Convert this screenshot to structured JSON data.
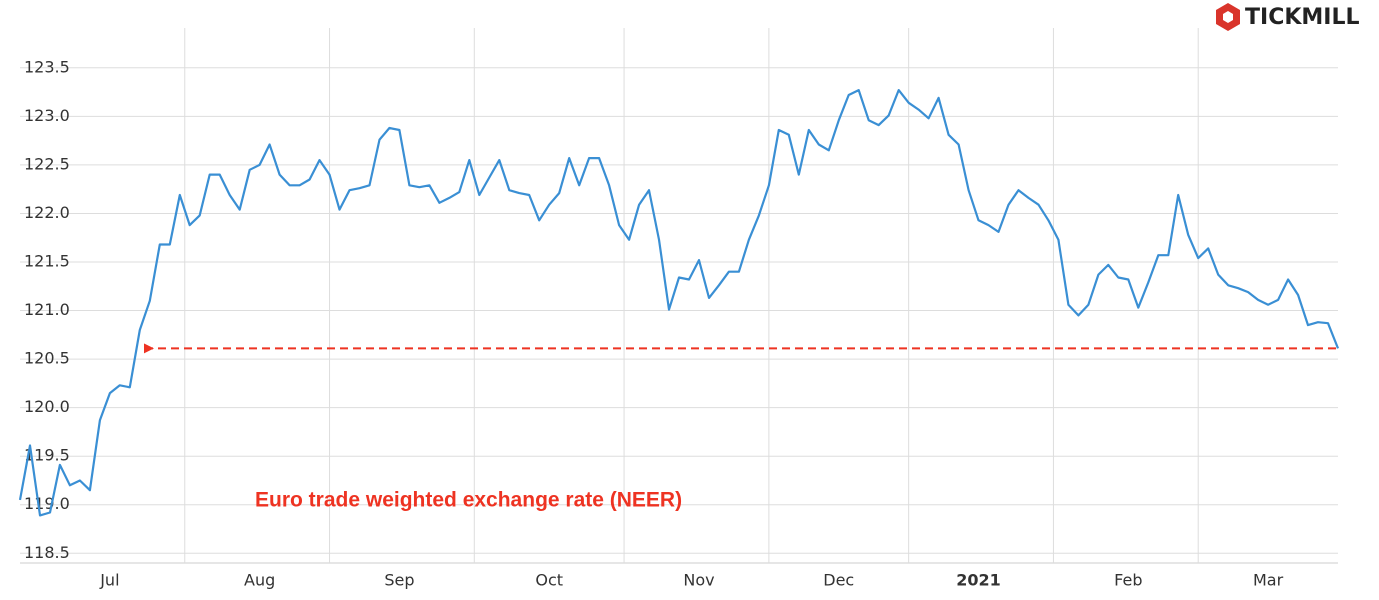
{
  "chart_data": {
    "type": "line",
    "logo": "TICKMILL",
    "annotation": "Euro trade weighted exchange rate (NEER)",
    "annotation_color": "#ee3322",
    "grid": true,
    "ylim": [
      118.4,
      123.91
    ],
    "yticks": [
      118.5,
      {
        "value": 119,
        "label": "119.0"
      },
      119.5,
      {
        "value": 120,
        "label": "120.0"
      },
      120.5,
      {
        "value": 121,
        "label": "121.0"
      },
      121.5,
      {
        "value": 122,
        "label": "122.0"
      },
      122.5,
      {
        "value": 123,
        "label": "123.0"
      },
      123.5
    ],
    "categories": [
      null,
      null,
      null,
      null,
      null,
      null,
      null,
      null,
      null,
      "Jul",
      null,
      null,
      null,
      null,
      null,
      null,
      null,
      null,
      null,
      null,
      null,
      null,
      null,
      null,
      "Aug",
      null,
      null,
      null,
      null,
      null,
      null,
      null,
      null,
      null,
      null,
      null,
      null,
      null,
      "Sep",
      null,
      null,
      null,
      null,
      null,
      null,
      null,
      null,
      null,
      null,
      null,
      null,
      null,
      null,
      "Oct",
      null,
      null,
      null,
      null,
      null,
      null,
      null,
      null,
      null,
      null,
      null,
      null,
      null,
      null,
      "Nov",
      null,
      null,
      null,
      null,
      null,
      null,
      null,
      null,
      null,
      null,
      null,
      null,
      null,
      "Dec",
      null,
      null,
      null,
      null,
      null,
      null,
      null,
      null,
      null,
      null,
      null,
      null,
      null,
      "2021",
      null,
      null,
      null,
      null,
      null,
      null,
      null,
      null,
      null,
      null,
      null,
      null,
      null,
      null,
      "Feb",
      null,
      null,
      null,
      null,
      null,
      null,
      null,
      null,
      null,
      null,
      null,
      null,
      null,
      "Mar",
      null,
      null,
      null,
      null,
      null,
      null,
      null
    ],
    "series": [
      {
        "color": "#3a8fd4",
        "values": [
          119.05,
          119.61,
          118.89,
          118.92,
          119.41,
          119.2,
          119.25,
          119.15,
          119.87,
          120.15,
          120.23,
          120.21,
          120.8,
          121.1,
          121.68,
          121.68,
          122.19,
          121.88,
          121.98,
          122.4,
          122.4,
          122.19,
          122.04,
          122.45,
          122.5,
          122.71,
          122.4,
          122.29,
          122.29,
          122.35,
          122.55,
          122.4,
          122.04,
          122.24,
          122.26,
          122.29,
          122.76,
          122.88,
          122.86,
          122.29,
          122.27,
          122.29,
          122.11,
          122.16,
          122.22,
          122.55,
          122.19,
          122.37,
          122.55,
          122.24,
          122.21,
          122.19,
          121.93,
          122.09,
          122.21,
          122.57,
          122.29,
          122.57,
          122.57,
          122.29,
          121.88,
          121.73,
          122.09,
          122.24,
          121.73,
          121.01,
          121.34,
          121.32,
          121.52,
          121.13,
          121.26,
          121.4,
          121.4,
          121.73,
          121.98,
          122.29,
          122.86,
          122.81,
          122.4,
          122.86,
          122.71,
          122.65,
          122.96,
          123.22,
          123.27,
          122.96,
          122.91,
          123.01,
          123.27,
          123.14,
          123.07,
          122.98,
          123.19,
          122.81,
          122.71,
          122.24,
          121.93,
          121.88,
          121.81,
          122.09,
          122.24,
          122.16,
          122.09,
          121.93,
          121.73,
          121.06,
          120.95,
          121.06,
          121.37,
          121.47,
          121.34,
          121.32,
          121.03,
          121.29,
          121.57,
          121.57,
          122.19,
          121.78,
          121.54,
          121.64,
          121.37,
          121.26,
          121.23,
          121.19,
          121.11,
          121.06,
          121.11,
          121.32,
          121.16,
          120.85,
          120.88,
          120.87,
          120.61
        ]
      }
    ]
  }
}
